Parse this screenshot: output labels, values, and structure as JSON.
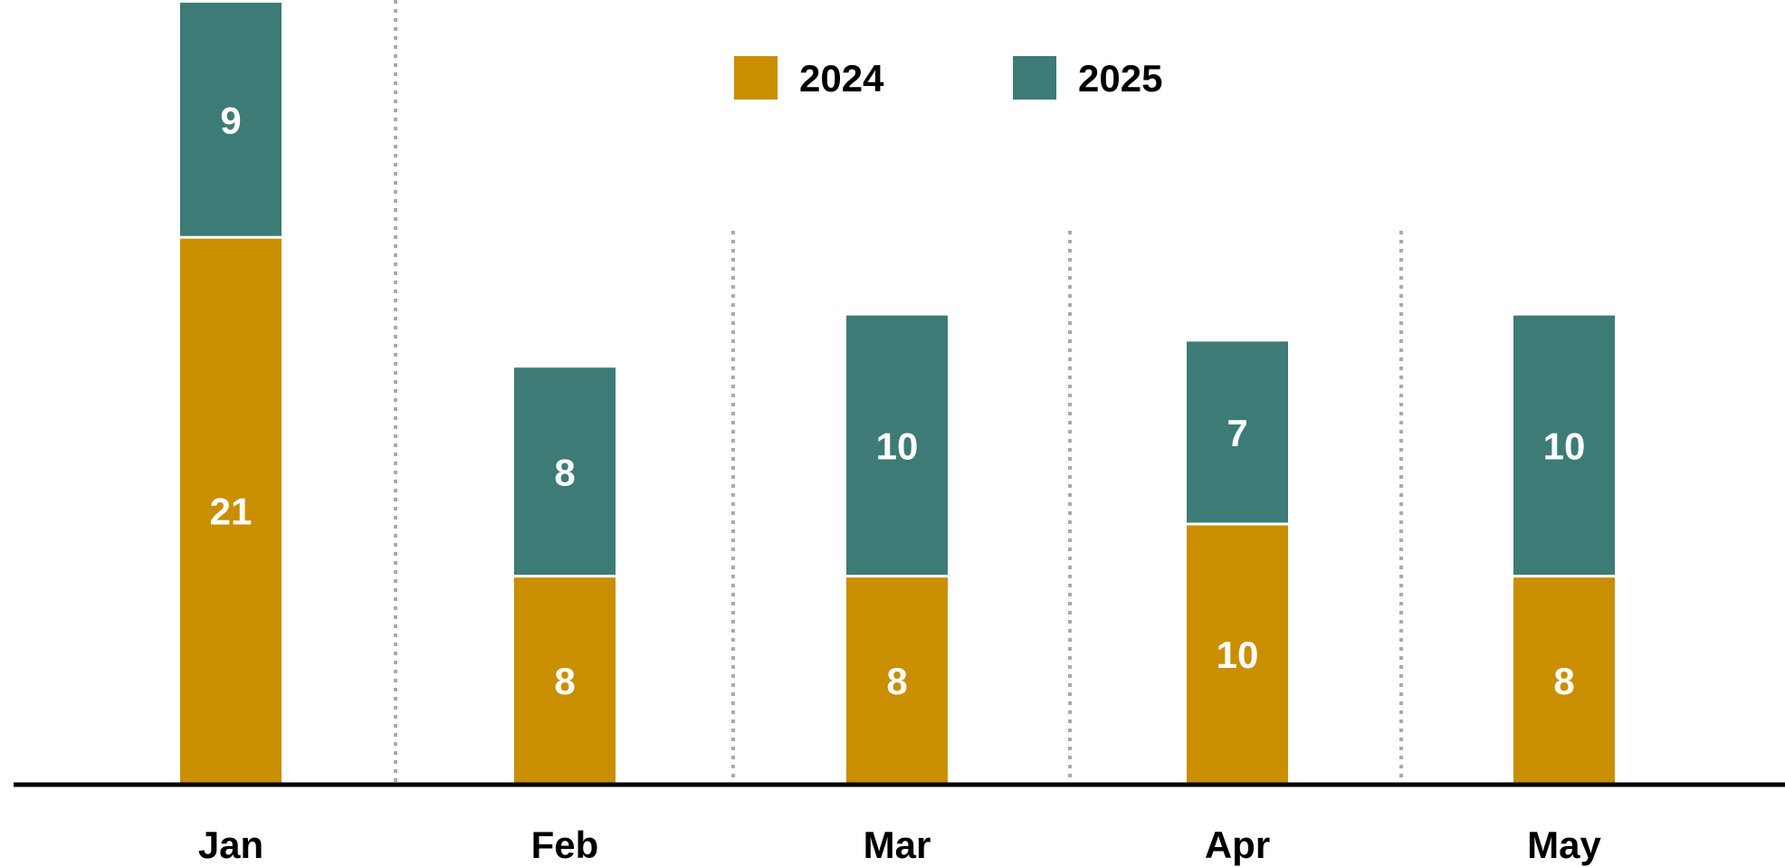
{
  "chart_data": {
    "type": "bar",
    "stacked": true,
    "title": "",
    "xlabel": "",
    "ylabel": "",
    "categories": [
      "Jan",
      "Feb",
      "Mar",
      "Apr",
      "May"
    ],
    "series": [
      {
        "name": "2024",
        "color": "#C98F00",
        "values": [
          21,
          8,
          8,
          10,
          8
        ],
        "labels": [
          "21",
          "8",
          "8",
          "10",
          "8"
        ]
      },
      {
        "name": "2025",
        "color": "#3D7B76",
        "values": [
          9,
          8,
          10,
          7,
          10
        ],
        "labels": [
          "9",
          "8",
          "10",
          "7",
          "10"
        ]
      }
    ],
    "ylim": [
      0,
      30
    ],
    "grid": false,
    "separators": "dotted vertical lines between categories",
    "legend": "top-center",
    "colors": {
      "axis": "#000000",
      "separator": "#AAAAAA",
      "label_on_bar": "#FFFFFF"
    }
  }
}
